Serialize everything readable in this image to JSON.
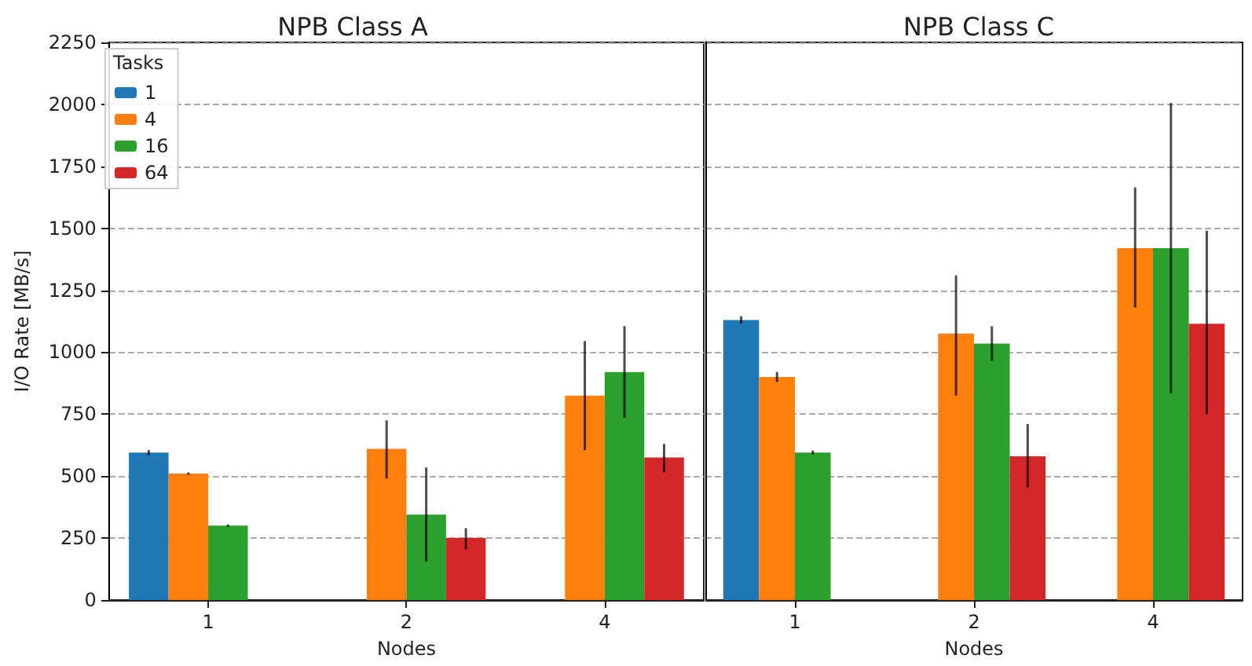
{
  "chart_data": [
    {
      "type": "bar",
      "title": "NPB Class A",
      "xlabel": "Nodes",
      "ylabel": "I/O Rate [MB/s]",
      "legend_title": "Tasks",
      "legend": "top left",
      "grid": "y",
      "categories": [
        "1",
        "2",
        "4"
      ],
      "ylim": [
        0,
        2250
      ],
      "yticks": [
        0,
        250,
        500,
        750,
        1000,
        1250,
        1500,
        1750,
        2000,
        2250
      ],
      "series": [
        {
          "name": "1",
          "color": "#1f77b4",
          "values": [
            595,
            null,
            null
          ],
          "errors": [
            [
              585,
              605
            ],
            null,
            null
          ]
        },
        {
          "name": "4",
          "color": "#ff7f0e",
          "values": [
            510,
            610,
            825
          ],
          "errors": [
            [
              505,
              515
            ],
            [
              490,
              725
            ],
            [
              605,
              1045
            ]
          ]
        },
        {
          "name": "16",
          "color": "#2ca02c",
          "values": [
            300,
            345,
            920
          ],
          "errors": [
            [
              295,
              305
            ],
            [
              155,
              535
            ],
            [
              735,
              1105
            ]
          ]
        },
        {
          "name": "64",
          "color": "#d62728",
          "values": [
            null,
            250,
            575
          ],
          "errors": [
            null,
            [
              205,
              290
            ],
            [
              515,
              630
            ]
          ]
        }
      ]
    },
    {
      "type": "bar",
      "title": "NPB Class C",
      "xlabel": "Nodes",
      "tick_labels": "x",
      "grid": "y",
      "categories": [
        "1",
        "2",
        "4"
      ],
      "ylim": [
        0,
        2250
      ],
      "yticks": [
        0,
        250,
        500,
        750,
        1000,
        1250,
        1500,
        1750,
        2000,
        2250
      ],
      "series": [
        {
          "name": "1",
          "color": "#1f77b4",
          "values": [
            1130,
            null,
            null
          ],
          "errors": [
            [
              1115,
              1145
            ],
            null,
            null
          ]
        },
        {
          "name": "4",
          "color": "#ff7f0e",
          "values": [
            900,
            1075,
            1420
          ],
          "errors": [
            [
              880,
              920
            ],
            [
              825,
              1310
            ],
            [
              1180,
              1665
            ]
          ]
        },
        {
          "name": "16",
          "color": "#2ca02c",
          "values": [
            595,
            1035,
            1420
          ],
          "errors": [
            [
              587,
              603
            ],
            [
              965,
              1105
            ],
            [
              835,
              2005
            ]
          ]
        },
        {
          "name": "64",
          "color": "#d62728",
          "values": [
            null,
            580,
            1115
          ],
          "errors": [
            null,
            [
              455,
              710
            ],
            [
              750,
              1490
            ]
          ]
        }
      ]
    }
  ]
}
